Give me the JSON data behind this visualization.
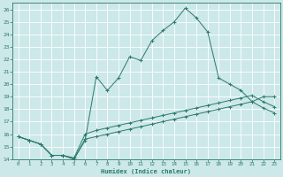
{
  "xlabel": "Humidex (Indice chaleur)",
  "background_color": "#cce8e8",
  "grid_color": "#b0d0d0",
  "line_color": "#2a7a6a",
  "xlim": [
    -0.5,
    23.5
  ],
  "ylim": [
    14,
    26.5
  ],
  "xticks": [
    0,
    1,
    2,
    3,
    4,
    5,
    6,
    7,
    8,
    9,
    10,
    11,
    12,
    13,
    14,
    15,
    16,
    17,
    18,
    19,
    20,
    21,
    22,
    23
  ],
  "yticks": [
    14,
    15,
    16,
    17,
    18,
    19,
    20,
    21,
    22,
    23,
    24,
    25,
    26
  ],
  "series": [
    {
      "x": [
        0,
        1,
        2,
        3,
        4,
        5,
        6,
        7,
        8,
        9,
        10,
        11,
        12,
        13,
        14,
        15,
        16,
        17,
        18,
        19,
        20,
        21,
        22,
        23
      ],
      "y": [
        15.8,
        15.5,
        15.2,
        14.3,
        14.3,
        14.0,
        15.5,
        20.6,
        19.5,
        20.5,
        22.2,
        21.9,
        23.5,
        24.3,
        25.0,
        26.1,
        25.3,
        24.2,
        20.5,
        20.0,
        19.5,
        18.6,
        19.0,
        19.0
      ]
    },
    {
      "x": [
        0,
        1,
        2,
        3,
        4,
        5,
        6,
        7,
        8,
        9,
        10,
        11,
        12,
        13,
        14,
        15,
        16,
        17,
        18,
        19,
        20,
        21,
        22,
        23
      ],
      "y": [
        15.8,
        15.5,
        15.2,
        14.3,
        14.3,
        14.1,
        16.0,
        16.3,
        16.5,
        16.7,
        16.9,
        17.1,
        17.3,
        17.5,
        17.7,
        17.9,
        18.1,
        18.3,
        18.5,
        18.7,
        18.9,
        19.1,
        18.6,
        18.2
      ]
    },
    {
      "x": [
        0,
        1,
        2,
        3,
        4,
        5,
        6,
        7,
        8,
        9,
        10,
        11,
        12,
        13,
        14,
        15,
        16,
        17,
        18,
        19,
        20,
        21,
        22,
        23
      ],
      "y": [
        15.8,
        15.5,
        15.2,
        14.3,
        14.3,
        14.0,
        15.6,
        15.8,
        16.0,
        16.2,
        16.4,
        16.6,
        16.8,
        17.0,
        17.2,
        17.4,
        17.6,
        17.8,
        18.0,
        18.2,
        18.4,
        18.6,
        18.1,
        17.7
      ]
    }
  ]
}
